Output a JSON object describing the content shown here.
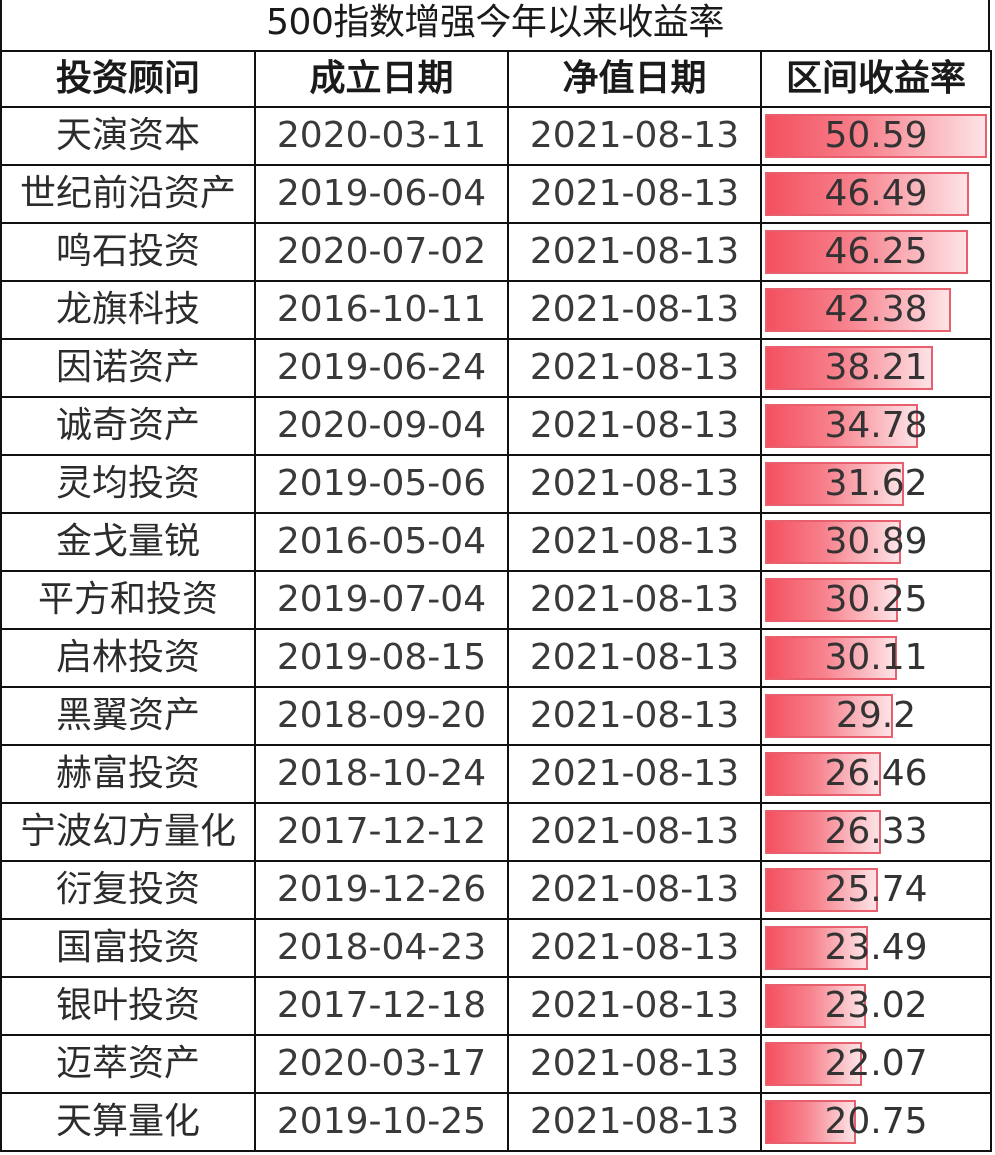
{
  "title": "500指数增强今年以来收益率",
  "headers": [
    "投资顾问",
    "成立日期",
    "净值日期",
    "区间收益率"
  ],
  "rows": [
    {
      "name": "天演资本",
      "founded": "2020-03-11",
      "nav_date": "2021-08-13",
      "return": "50.59"
    },
    {
      "name": "世纪前沿资产",
      "founded": "2019-06-04",
      "nav_date": "2021-08-13",
      "return": "46.49"
    },
    {
      "name": "鸣石投资",
      "founded": "2020-07-02",
      "nav_date": "2021-08-13",
      "return": "46.25"
    },
    {
      "name": "龙旗科技",
      "founded": "2016-10-11",
      "nav_date": "2021-08-13",
      "return": "42.38"
    },
    {
      "name": "因诺资产",
      "founded": "2019-06-24",
      "nav_date": "2021-08-13",
      "return": "38.21"
    },
    {
      "name": "诚奇资产",
      "founded": "2020-09-04",
      "nav_date": "2021-08-13",
      "return": "34.78"
    },
    {
      "name": "灵均投资",
      "founded": "2019-05-06",
      "nav_date": "2021-08-13",
      "return": "31.62"
    },
    {
      "name": "金戈量锐",
      "founded": "2016-05-04",
      "nav_date": "2021-08-13",
      "return": "30.89"
    },
    {
      "name": "平方和投资",
      "founded": "2019-07-04",
      "nav_date": "2021-08-13",
      "return": "30.25"
    },
    {
      "name": "启林投资",
      "founded": "2019-08-15",
      "nav_date": "2021-08-13",
      "return": "30.11"
    },
    {
      "name": "黑翼资产",
      "founded": "2018-09-20",
      "nav_date": "2021-08-13",
      "return": "29.2"
    },
    {
      "name": "赫富投资",
      "founded": "2018-10-24",
      "nav_date": "2021-08-13",
      "return": "26.46"
    },
    {
      "name": "宁波幻方量化",
      "founded": "2017-12-12",
      "nav_date": "2021-08-13",
      "return": "26.33"
    },
    {
      "name": "衍复投资",
      "founded": "2019-12-26",
      "nav_date": "2021-08-13",
      "return": "25.74"
    },
    {
      "name": "国富投资",
      "founded": "2018-04-23",
      "nav_date": "2021-08-13",
      "return": "23.49"
    },
    {
      "name": "银叶投资",
      "founded": "2017-12-18",
      "nav_date": "2021-08-13",
      "return": "23.02"
    },
    {
      "name": "迈萃资产",
      "founded": "2020-03-17",
      "nav_date": "2021-08-13",
      "return": "22.07"
    },
    {
      "name": "天算量化",
      "founded": "2019-10-25",
      "nav_date": "2021-08-13",
      "return": "20.75"
    }
  ],
  "bar_color": "#f4505f"
}
